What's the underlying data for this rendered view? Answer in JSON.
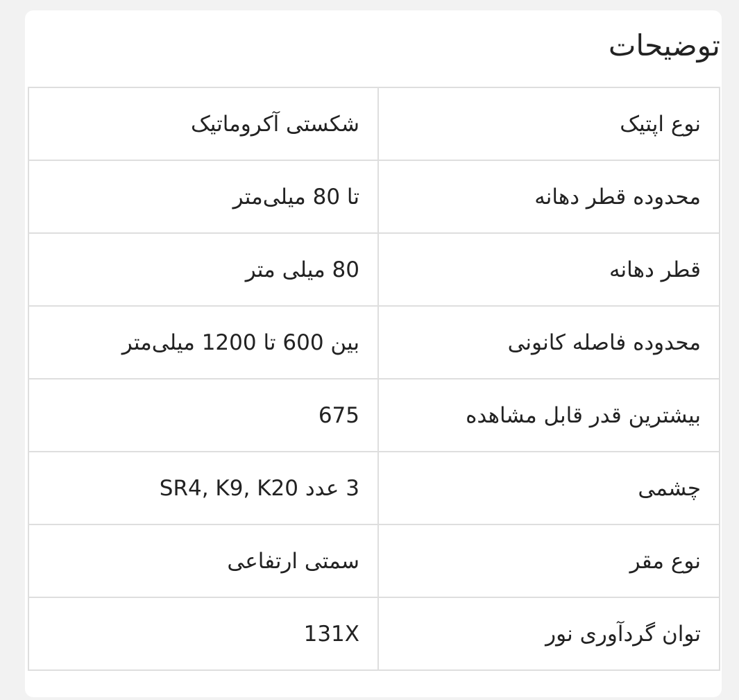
{
  "section_title": "توضیحات",
  "specs": [
    {
      "label": "نوع اپتیک",
      "value": "شکستی آکروماتیک"
    },
    {
      "label": "محدوده قطر دهانه",
      "value": "تا 80 میلی‌متر"
    },
    {
      "label": "قطر دهانه",
      "value": "80 میلی متر"
    },
    {
      "label": "محدوده فاصله کانونی",
      "value": "بین 600 تا 1200 میلی‌متر"
    },
    {
      "label": "بیشترین قدر قابل مشاهده",
      "value": "675"
    },
    {
      "label": "چشمی",
      "value": "3 عدد SR4, K9, K20"
    },
    {
      "label": "نوع مقر",
      "value": "سمتی ارتفاعی"
    },
    {
      "label": "توان گردآوری نور",
      "value": "131X"
    }
  ]
}
